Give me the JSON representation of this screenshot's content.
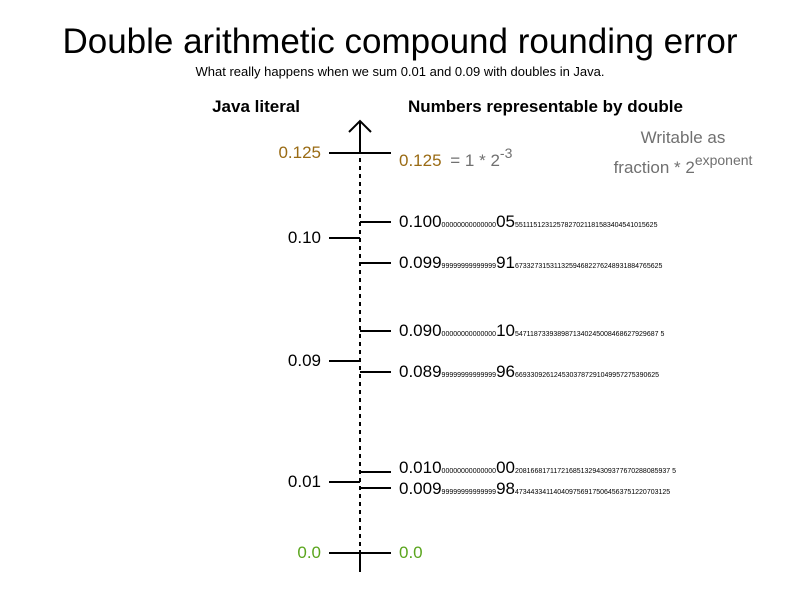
{
  "title": "Double arithmetic compound rounding error",
  "subtitle": "What really happens when we sum 0.01 and 0.09 with doubles in Java.",
  "headers": {
    "left": "Java literal",
    "right": "Numbers representable by double"
  },
  "literals": {
    "l0125": "0.125",
    "l010": "0.10",
    "l009": "0.09",
    "l001": "0.01",
    "l00": "0.0"
  },
  "representable": {
    "r0125": "0.125",
    "r0100": {
      "lead": "0.100",
      "zeros": "00000000000000",
      "key": "05",
      "tail": "5511151231257827021181583404541015625"
    },
    "r0099": {
      "lead": "0.099",
      "zeros": "99999999999999",
      "key": "91",
      "tail": "67332731531132594682276248931884765625"
    },
    "r0090": {
      "lead": "0.090",
      "zeros": "00000000000000",
      "key": "10",
      "tail": "5471187339389871340245008468627929687 5"
    },
    "r0089": {
      "lead": "0.089",
      "zeros": "99999999999999",
      "key": "96",
      "tail": "6693309261245303787291049957275390625"
    },
    "r0010": {
      "lead": "0.010",
      "zeros": "00000000000000",
      "key": "00",
      "tail": "2081668171172168513294309377670288085937 5"
    },
    "r0009": {
      "lead": "0.009",
      "zeros": "99999999999999",
      "key": "98",
      "tail": "4734433411404097569175064563751220703125"
    },
    "r00": "0.0"
  },
  "formula": {
    "prefix": "= 1 * 2",
    "exponent": "-3"
  },
  "note": {
    "line1": "Writable as",
    "line2_prefix": "fraction * 2",
    "line2_exponent": "exponent"
  },
  "colors": {
    "gold": "#9a6b14",
    "green": "#5aa51d",
    "gray": "#707070"
  }
}
